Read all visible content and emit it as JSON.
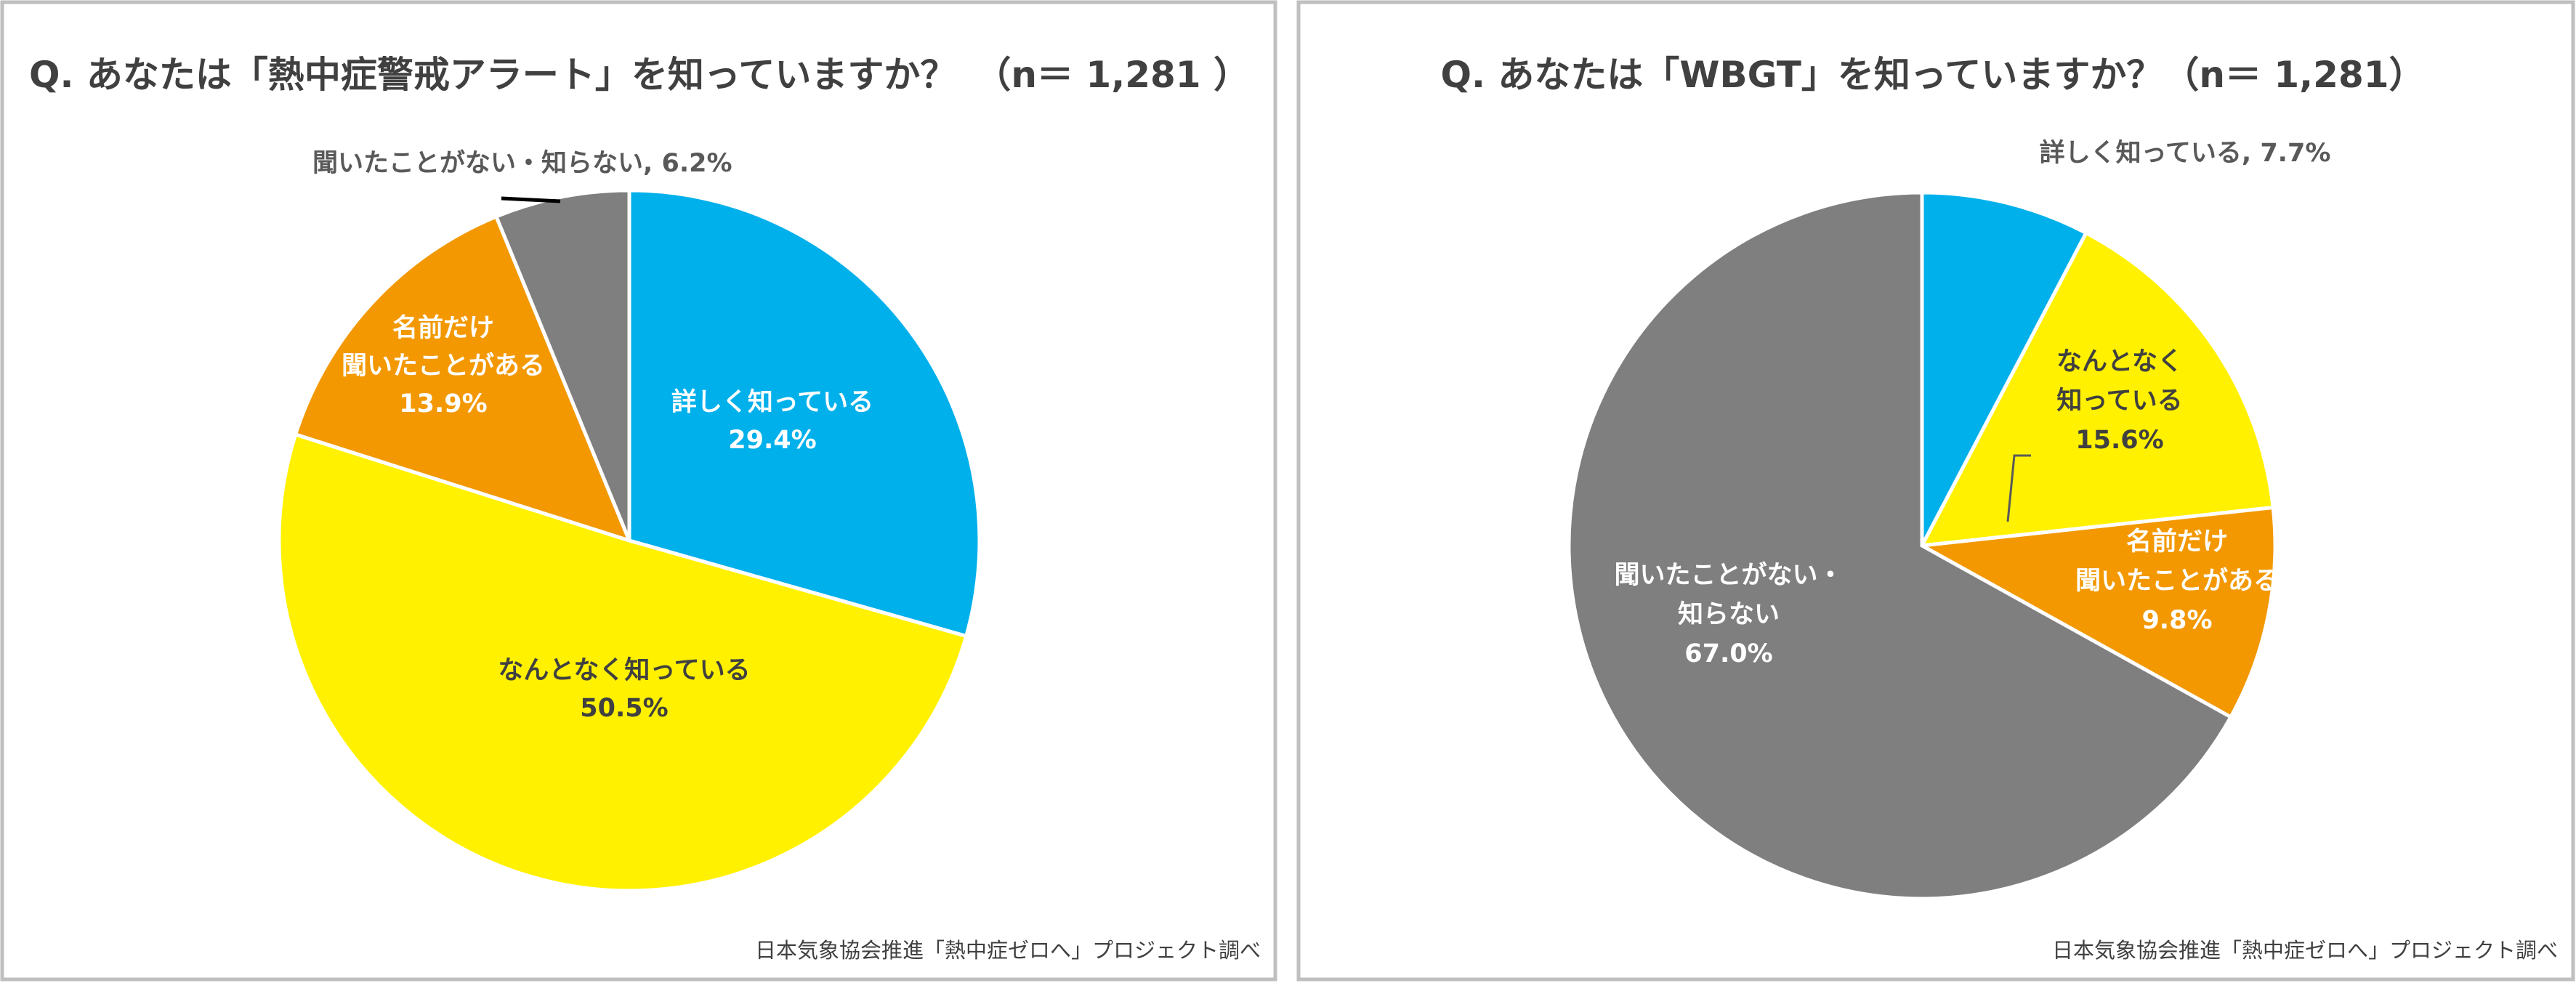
{
  "chart_data": [
    {
      "type": "pie",
      "title": "Q. あなたは「熱中症警戒アラート」を知っていますか？　（n＝ 1,281 ）",
      "source": "日本気象協会推進「熱中症ゼロへ」プロジェクト調べ",
      "start": "12 o'clock, clockwise",
      "slices": [
        {
          "label": "詳しく知っている",
          "lines": [
            "詳しく知っている",
            "29.4%"
          ],
          "value": 29.4,
          "color": "#00B0EB",
          "text_color": "#FFFFFF"
        },
        {
          "label": "なんとなく知っている",
          "lines": [
            "なんとなく知っている",
            "50.5%"
          ],
          "value": 50.5,
          "color": "#FFF100",
          "text_color": "#404040"
        },
        {
          "label": "名前だけ聞いたことがある",
          "lines": [
            "名前だけ",
            "聞いたことがある",
            "13.9%"
          ],
          "value": 13.9,
          "color": "#F39800",
          "text_color": "#FFFFFF"
        },
        {
          "label": "聞いたことがない・知らない",
          "lines": [
            "聞いたことがない・知らない, 6.2%"
          ],
          "value": 6.2,
          "color": "#7F7F7F",
          "text_color": "#595959",
          "outside": true
        }
      ]
    },
    {
      "type": "pie",
      "title": "Q. あなたは「WBGT」を知っていますか？（n＝ 1,281）",
      "source": "日本気象協会推進「熱中症ゼロへ」プロジェクト調べ",
      "start": "12 o'clock, clockwise",
      "slices": [
        {
          "label": "詳しく知っている",
          "lines": [
            "詳しく知っている, 7.7%"
          ],
          "value": 7.7,
          "color": "#00B0EB",
          "text_color": "#595959",
          "outside": true
        },
        {
          "label": "なんとなく知っている",
          "lines": [
            "なんとなく",
            "知っている",
            "15.6%"
          ],
          "value": 15.6,
          "color": "#FFF100",
          "text_color": "#404040"
        },
        {
          "label": "名前だけ聞いたことがある",
          "lines": [
            "名前だけ",
            "聞いたことがある",
            "9.8%"
          ],
          "value": 9.8,
          "color": "#F39800",
          "text_color": "#FFFFFF"
        },
        {
          "label": "聞いたことがない・知らない",
          "lines": [
            "聞いたことがない・",
            "知らない",
            "67.0%"
          ],
          "value": 67.0,
          "color": "#7F7F7F",
          "text_color": "#FFFFFF"
        }
      ]
    }
  ]
}
